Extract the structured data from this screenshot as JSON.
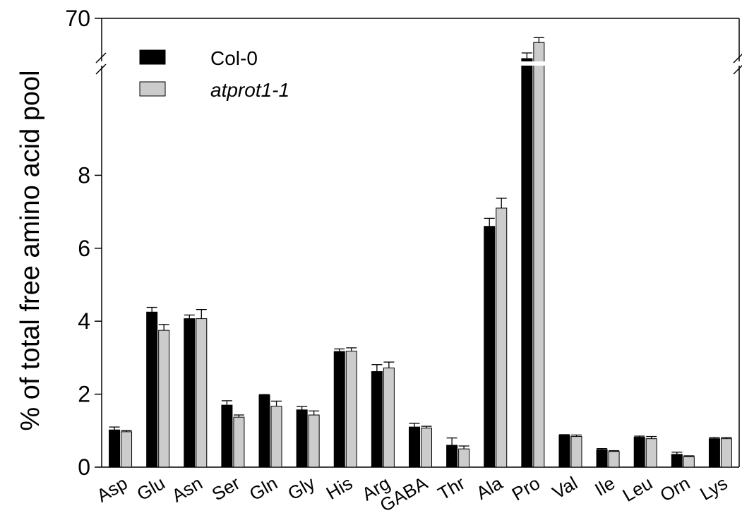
{
  "chart_data": {
    "type": "bar",
    "ylabel": "% of total free amino acid pool",
    "xlabel": "",
    "title": "",
    "y_axis": {
      "lower_segment": [
        0,
        10
      ],
      "upper_segment_label": "70",
      "break": true,
      "ticks": [
        "0",
        "2",
        "4",
        "6",
        "8",
        "70"
      ]
    },
    "categories": [
      "Asp",
      "Glu",
      "Asn",
      "Ser",
      "Gln",
      "Gly",
      "His",
      "Arg",
      "GABA",
      "Thr",
      "Ala",
      "Pro",
      "Val",
      "Ile",
      "Leu",
      "Orn",
      "Lys"
    ],
    "series": [
      {
        "name": "Col-0",
        "color": "#000000",
        "values": [
          1.02,
          4.25,
          4.07,
          1.7,
          1.97,
          1.57,
          3.17,
          2.62,
          1.1,
          0.6,
          6.6,
          65,
          0.87,
          0.48,
          0.82,
          0.35,
          0.78
        ],
        "errors": [
          0.08,
          0.13,
          0.1,
          0.12,
          0.02,
          0.09,
          0.07,
          0.19,
          0.1,
          0.2,
          0.22,
          0.7,
          0.02,
          0.03,
          0.03,
          0.06,
          0.03
        ]
      },
      {
        "name": "atprot1-1",
        "name_style": "italic",
        "color": "#cccccc",
        "values": [
          0.97,
          3.75,
          4.07,
          1.37,
          1.67,
          1.43,
          3.18,
          2.72,
          1.07,
          0.5,
          7.1,
          67,
          0.84,
          0.43,
          0.78,
          0.29,
          0.78
        ],
        "errors": [
          0.03,
          0.16,
          0.25,
          0.06,
          0.14,
          0.11,
          0.09,
          0.16,
          0.05,
          0.08,
          0.27,
          0.6,
          0.04,
          0.02,
          0.06,
          0.02,
          0.03
        ]
      }
    ],
    "legend_position": "top-left",
    "grid": false
  }
}
